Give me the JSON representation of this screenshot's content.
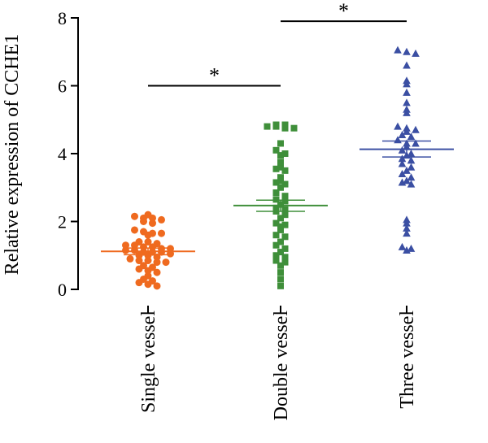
{
  "chart_data": {
    "type": "scatter",
    "ylabel": "Relative expression of CCHE1",
    "xlabel": "",
    "ylim": [
      0,
      8
    ],
    "yticks": [
      "0",
      "2",
      "4",
      "6",
      "8"
    ],
    "categories": [
      "Single vessel",
      "Double vessel",
      "Three vessel"
    ],
    "series": [
      {
        "color": "#ef6a1f",
        "marker": "circle",
        "mean": 1.12,
        "sem_low": 1.02,
        "sem_high": 1.22,
        "values": [
          2.2,
          2.15,
          2.1,
          2.1,
          2.05,
          2.0,
          1.95,
          1.75,
          1.7,
          1.65,
          1.65,
          1.6,
          1.4,
          1.4,
          1.35,
          1.3,
          1.3,
          1.25,
          1.25,
          1.2,
          1.2,
          1.15,
          1.15,
          1.1,
          1.1,
          1.1,
          1.05,
          1.0,
          1.0,
          0.95,
          0.9,
          0.85,
          0.85,
          0.8,
          0.8,
          0.7,
          0.65,
          0.6,
          0.55,
          0.5,
          0.4,
          0.3,
          0.25,
          0.2,
          0.15,
          0.1
        ]
      },
      {
        "color": "#3f8f3a",
        "marker": "square",
        "mean": 2.47,
        "sem_low": 2.3,
        "sem_high": 2.63,
        "values": [
          4.85,
          4.85,
          4.8,
          4.8,
          4.75,
          4.75,
          4.3,
          4.1,
          4.0,
          3.95,
          3.75,
          3.6,
          3.55,
          3.5,
          3.3,
          3.2,
          3.15,
          3.1,
          3.0,
          2.85,
          2.75,
          2.65,
          2.6,
          2.5,
          2.4,
          2.35,
          2.3,
          2.2,
          2.1,
          1.95,
          1.9,
          1.85,
          1.75,
          1.6,
          1.55,
          1.4,
          1.3,
          1.2,
          1.1,
          1.0,
          0.95,
          0.85,
          0.8,
          0.7,
          0.5,
          0.3,
          0.1
        ]
      },
      {
        "color": "#3b4fa3",
        "marker": "triangle",
        "mean": 4.13,
        "sem_low": 3.9,
        "sem_high": 4.37,
        "values": [
          7.05,
          7.0,
          6.95,
          6.6,
          6.15,
          6.05,
          5.8,
          5.5,
          5.3,
          5.2,
          4.8,
          4.75,
          4.7,
          4.65,
          4.55,
          4.5,
          4.4,
          4.3,
          4.3,
          4.2,
          4.1,
          4.0,
          3.95,
          3.85,
          3.8,
          3.7,
          3.6,
          3.5,
          3.4,
          3.3,
          3.2,
          3.15,
          3.1,
          2.05,
          1.95,
          1.8,
          1.65,
          1.25,
          1.2,
          1.15
        ]
      }
    ],
    "significance": [
      {
        "label": "*",
        "from": "Single vessel",
        "to": "Double vessel",
        "y": 6.0
      },
      {
        "label": "*",
        "from": "Double vessel",
        "to": "Three vessel",
        "y": 7.9
      }
    ]
  }
}
